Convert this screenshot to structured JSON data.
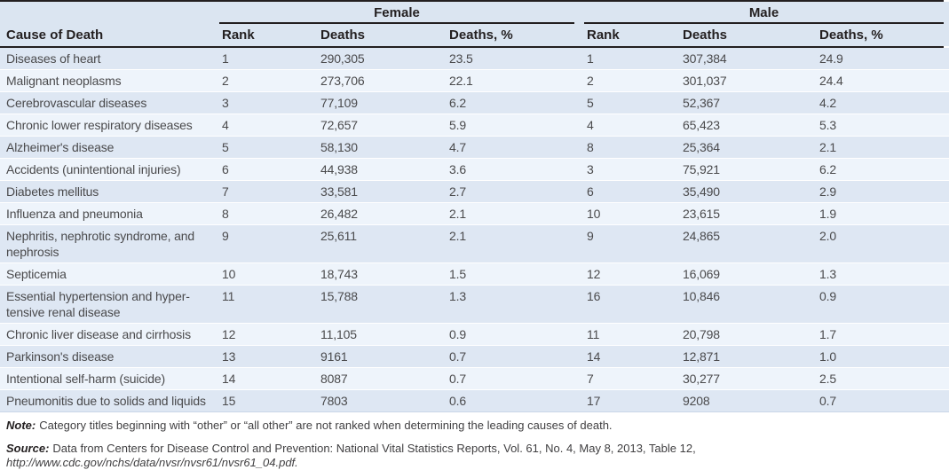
{
  "table": {
    "cause_header": "Cause of Death",
    "groups": [
      {
        "label": "Female"
      },
      {
        "label": "Male"
      }
    ],
    "columns": [
      "Rank",
      "Deaths",
      "Deaths, %",
      "Rank",
      "Deaths",
      "Deaths, %"
    ],
    "rows": [
      {
        "cause": "Diseases of heart",
        "values": [
          "1",
          "290,305",
          "23.5",
          "1",
          "307,384",
          "24.9"
        ]
      },
      {
        "cause": "Malignant neoplasms",
        "values": [
          "2",
          "273,706",
          "22.1",
          "2",
          "301,037",
          "24.4"
        ]
      },
      {
        "cause": "Cerebrovascular diseases",
        "values": [
          "3",
          "77,109",
          "6.2",
          "5",
          "52,367",
          "4.2"
        ]
      },
      {
        "cause": "Chronic lower respiratory diseases",
        "values": [
          "4",
          "72,657",
          "5.9",
          "4",
          "65,423",
          "5.3"
        ]
      },
      {
        "cause": "Alzheimer's disease",
        "values": [
          "5",
          "58,130",
          "4.7",
          "8",
          "25,364",
          "2.1"
        ]
      },
      {
        "cause": "Accidents (unintentional injuries)",
        "values": [
          "6",
          "44,938",
          "3.6",
          "3",
          "75,921",
          "6.2"
        ]
      },
      {
        "cause": "Diabetes mellitus",
        "values": [
          "7",
          "33,581",
          "2.7",
          "6",
          "35,490",
          "2.9"
        ]
      },
      {
        "cause": "Influenza and pneumonia",
        "values": [
          "8",
          "26,482",
          "2.1",
          "10",
          "23,615",
          "1.9"
        ]
      },
      {
        "cause": "Nephritis, nephrotic syndrome, and nephrosis",
        "values": [
          "9",
          "25,611",
          "2.1",
          "9",
          "24,865",
          "2.0"
        ]
      },
      {
        "cause": "Septicemia",
        "values": [
          "10",
          "18,743",
          "1.5",
          "12",
          "16,069",
          "1.3"
        ]
      },
      {
        "cause": "Essential hypertension and hyper­tensive renal disease",
        "values": [
          "11",
          "15,788",
          "1.3",
          "16",
          "10,846",
          "0.9"
        ]
      },
      {
        "cause": "Chronic liver disease and cirrhosis",
        "values": [
          "12",
          "11,105",
          "0.9",
          "11",
          "20,798",
          "1.7"
        ]
      },
      {
        "cause": "Parkinson's disease",
        "values": [
          "13",
          "9161",
          "0.7",
          "14",
          "12,871",
          "1.0"
        ]
      },
      {
        "cause": "Intentional self-harm (suicide)",
        "values": [
          "14",
          "8087",
          "0.7",
          "7",
          "30,277",
          "2.5"
        ]
      },
      {
        "cause": "Pneumonitis due to solids and liquids",
        "values": [
          "15",
          "7803",
          "0.6",
          "17",
          "9208",
          "0.7"
        ]
      }
    ]
  },
  "note": {
    "label": "Note:",
    "text": "Category titles beginning with “other” or “all other” are not ranked when determining the leading causes of death."
  },
  "source": {
    "label": "Source:",
    "text": "Data from Centers for Disease Control and Prevention: National Vital Statistics Reports, Vol. 61, No. 4, May 8, 2013, Table 12, ",
    "url": "http://www.cdc.gov/nchs/data/nvsr/nvsr61/nvsr61_04.pdf."
  },
  "colors": {
    "header_bg": "#dbe5f1",
    "row_dark": "#dee7f3",
    "row_light": "#eef4fb",
    "rule": "#231f20"
  }
}
